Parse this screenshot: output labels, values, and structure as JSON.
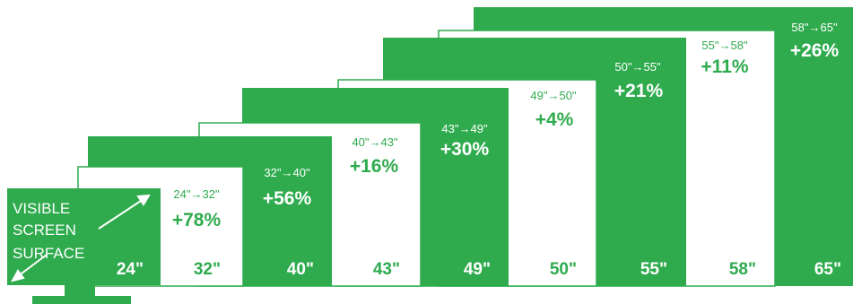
{
  "colors": {
    "green": "#2fab4e",
    "white": "#ffffff"
  },
  "legend_label": [
    "VISIBLE",
    "SCREEN",
    "SURFACE"
  ],
  "screens": [
    {
      "size": "24\"",
      "transition": "",
      "increase": ""
    },
    {
      "size": "32\"",
      "transition": "24\"→32\"",
      "increase": "+78%"
    },
    {
      "size": "40\"",
      "transition": "32\"→40\"",
      "increase": "+56%"
    },
    {
      "size": "43\"",
      "transition": "40\"→43\"",
      "increase": "+16%"
    },
    {
      "size": "49\"",
      "transition": "43\"→49\"",
      "increase": "+30%"
    },
    {
      "size": "50\"",
      "transition": "49\"→50\"",
      "increase": "+4%"
    },
    {
      "size": "55\"",
      "transition": "50\"→55\"",
      "increase": "+21%"
    },
    {
      "size": "58\"",
      "transition": "55\"→58\"",
      "increase": "+11%"
    },
    {
      "size": "65\"",
      "transition": "58\"→65\"",
      "increase": "+26%"
    }
  ]
}
